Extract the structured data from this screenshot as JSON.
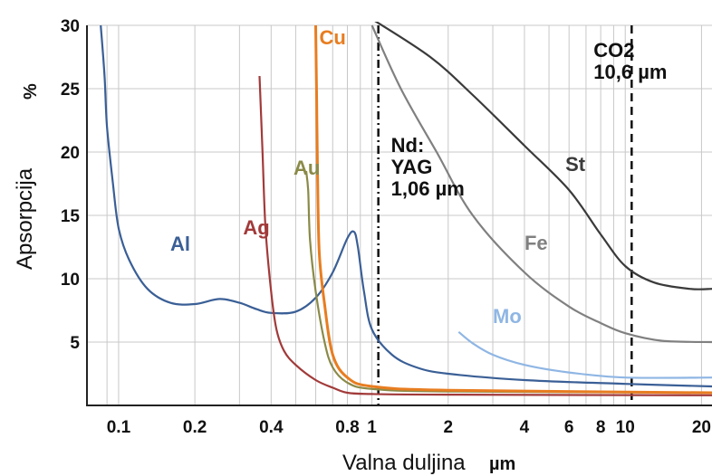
{
  "chart_data": {
    "type": "line",
    "title": "",
    "xlabel": "Valna duljina",
    "xunit": "µm",
    "ylabel": "Apsorpcija",
    "yunit": "%",
    "xscale": "log",
    "xlim": [
      0.075,
      22
    ],
    "ylim": [
      0,
      30
    ],
    "grid": true,
    "x_ticks": [
      {
        "value": 0.1,
        "label": "0.1"
      },
      {
        "value": 0.2,
        "label": "0.2"
      },
      {
        "value": 0.4,
        "label": "0.4"
      },
      {
        "value": 0.8,
        "label": "0.8"
      },
      {
        "value": 1,
        "label": "1"
      },
      {
        "value": 2,
        "label": "2"
      },
      {
        "value": 4,
        "label": "4"
      },
      {
        "value": 6,
        "label": "6"
      },
      {
        "value": 8,
        "label": "8"
      },
      {
        "value": 10,
        "label": "10"
      },
      {
        "value": 20,
        "label": "20"
      }
    ],
    "y_ticks": [
      {
        "value": 5,
        "label": "5"
      },
      {
        "value": 10,
        "label": "10"
      },
      {
        "value": 15,
        "label": "15"
      },
      {
        "value": 20,
        "label": "20"
      },
      {
        "value": 25,
        "label": "25"
      },
      {
        "value": 30,
        "label": "30"
      }
    ],
    "series": [
      {
        "name": "Al",
        "color": "#3a5f96",
        "label_at": [
          0.16,
          12.2
        ],
        "points": [
          [
            0.085,
            30
          ],
          [
            0.088,
            26
          ],
          [
            0.09,
            22
          ],
          [
            0.095,
            17.5
          ],
          [
            0.1,
            14
          ],
          [
            0.11,
            11.5
          ],
          [
            0.13,
            9.2
          ],
          [
            0.16,
            8.1
          ],
          [
            0.2,
            8
          ],
          [
            0.25,
            8.4
          ],
          [
            0.3,
            8.1
          ],
          [
            0.35,
            7.6
          ],
          [
            0.4,
            7.3
          ],
          [
            0.5,
            7.4
          ],
          [
            0.6,
            8.5
          ],
          [
            0.7,
            10.5
          ],
          [
            0.8,
            13.2
          ],
          [
            0.85,
            13.7
          ],
          [
            0.88,
            12.5
          ],
          [
            0.93,
            9
          ],
          [
            1.0,
            6
          ],
          [
            1.2,
            4
          ],
          [
            1.5,
            3
          ],
          [
            2,
            2.5
          ],
          [
            4,
            2
          ],
          [
            10,
            1.7
          ],
          [
            22,
            1.5
          ]
        ]
      },
      {
        "name": "Ag",
        "color": "#a23a3a",
        "label_at": [
          0.31,
          13.5
        ],
        "points": [
          [
            0.36,
            26
          ],
          [
            0.37,
            20
          ],
          [
            0.38,
            14
          ],
          [
            0.4,
            9
          ],
          [
            0.42,
            6
          ],
          [
            0.45,
            4.3
          ],
          [
            0.5,
            3.2
          ],
          [
            0.6,
            2
          ],
          [
            0.7,
            1.4
          ],
          [
            0.8,
            1
          ],
          [
            1,
            0.9
          ],
          [
            2,
            0.85
          ],
          [
            22,
            0.8
          ]
        ]
      },
      {
        "name": "Au",
        "color": "#8a8a48",
        "label_at": [
          0.49,
          18.2
        ],
        "points": [
          [
            0.55,
            18.5
          ],
          [
            0.56,
            17
          ],
          [
            0.57,
            13
          ],
          [
            0.6,
            9
          ],
          [
            0.65,
            5
          ],
          [
            0.7,
            3
          ],
          [
            0.8,
            1.8
          ],
          [
            1,
            1.3
          ],
          [
            2,
            1.1
          ],
          [
            22,
            1
          ]
        ]
      },
      {
        "name": "Cu",
        "color": "#e87d20",
        "label_at": [
          0.62,
          28.5
        ],
        "points": [
          [
            0.6,
            30
          ],
          [
            0.605,
            24
          ],
          [
            0.61,
            18
          ],
          [
            0.62,
            12
          ],
          [
            0.65,
            8
          ],
          [
            0.7,
            4
          ],
          [
            0.8,
            2.2
          ],
          [
            1,
            1.5
          ],
          [
            2,
            1.2
          ],
          [
            22,
            1
          ]
        ]
      },
      {
        "name": "Mo",
        "color": "#8fb6e4",
        "label_at": [
          3.0,
          6.5
        ],
        "points": [
          [
            2.2,
            5.8
          ],
          [
            2.5,
            4.9
          ],
          [
            3,
            4
          ],
          [
            4,
            3.2
          ],
          [
            6,
            2.6
          ],
          [
            10,
            2.2
          ],
          [
            22,
            2.2
          ]
        ]
      },
      {
        "name": "Fe",
        "color": "#808080",
        "label_at": [
          4.0,
          12.3
        ],
        "points": [
          [
            1.0,
            30
          ],
          [
            1.3,
            25
          ],
          [
            1.8,
            20
          ],
          [
            2.5,
            15
          ],
          [
            4,
            10.5
          ],
          [
            6,
            7.8
          ],
          [
            8,
            6.5
          ],
          [
            10,
            5.7
          ],
          [
            14,
            5.1
          ],
          [
            22,
            5
          ]
        ]
      },
      {
        "name": "St",
        "color": "#3a3a3a",
        "label_at": [
          5.8,
          18.5
        ],
        "points": [
          [
            1.0,
            30.5
          ],
          [
            1.7,
            27.5
          ],
          [
            2.5,
            24.5
          ],
          [
            4,
            20.5
          ],
          [
            6,
            17
          ],
          [
            8,
            13.5
          ],
          [
            10,
            11
          ],
          [
            13,
            9.7
          ],
          [
            18,
            9.2
          ],
          [
            22,
            9.2
          ]
        ]
      }
    ],
    "reference_lines": [
      {
        "x": 1.06,
        "style": "dash-dot",
        "label_lines": [
          "Nd:",
          "YAG",
          "1,06 µm"
        ],
        "label_at": [
          1.06,
          20
        ]
      },
      {
        "x": 10.6,
        "style": "dashed",
        "label_lines": [
          "CO2",
          "10,6 µm"
        ],
        "label_at": [
          7.5,
          27.5
        ]
      }
    ]
  }
}
